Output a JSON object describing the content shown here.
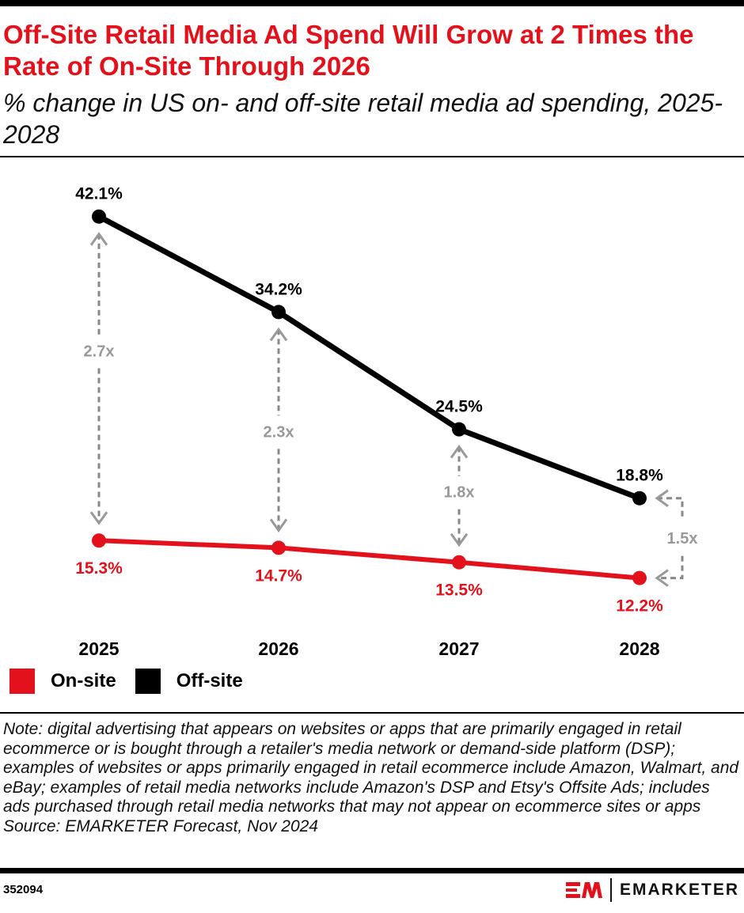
{
  "title": "Off-Site Retail Media Ad Spend Will Grow at 2 Times the Rate of On-Site Through 2026",
  "subtitle": "% change in US on- and off-site retail media ad spending, 2025-2028",
  "chart_data": {
    "type": "line",
    "categories": [
      "2025",
      "2026",
      "2027",
      "2028"
    ],
    "series": [
      {
        "name": "On-site",
        "values": [
          15.3,
          14.7,
          13.5,
          12.2
        ],
        "labels": [
          "15.3%",
          "14.7%",
          "13.5%",
          "12.2%"
        ],
        "color": "#e3111b"
      },
      {
        "name": "Off-site",
        "values": [
          42.1,
          34.2,
          24.5,
          18.8
        ],
        "labels": [
          "42.1%",
          "34.2%",
          "24.5%",
          "18.8%"
        ],
        "color": "#000000"
      }
    ],
    "annotations": [
      "2.7x",
      "2.3x",
      "1.8x",
      "1.5x"
    ],
    "grid": false,
    "legend": "bottom-left"
  },
  "note": "Note: digital advertising that appears on websites or apps that are primarily engaged in retail ecommerce or is bought through a retailer's media network or demand-side platform (DSP); examples of websites or apps primarily engaged in retail ecommerce include Amazon, Walmart, and eBay; examples of retail media networks include Amazon's DSP and Etsy's Offsite Ads; includes ads purchased through retail media networks that may not appear on ecommerce sites or apps",
  "source": "Source: EMARKETER Forecast, Nov 2024",
  "chart_id": "352094",
  "brand": "EMARKETER",
  "logo_mark": "EM"
}
